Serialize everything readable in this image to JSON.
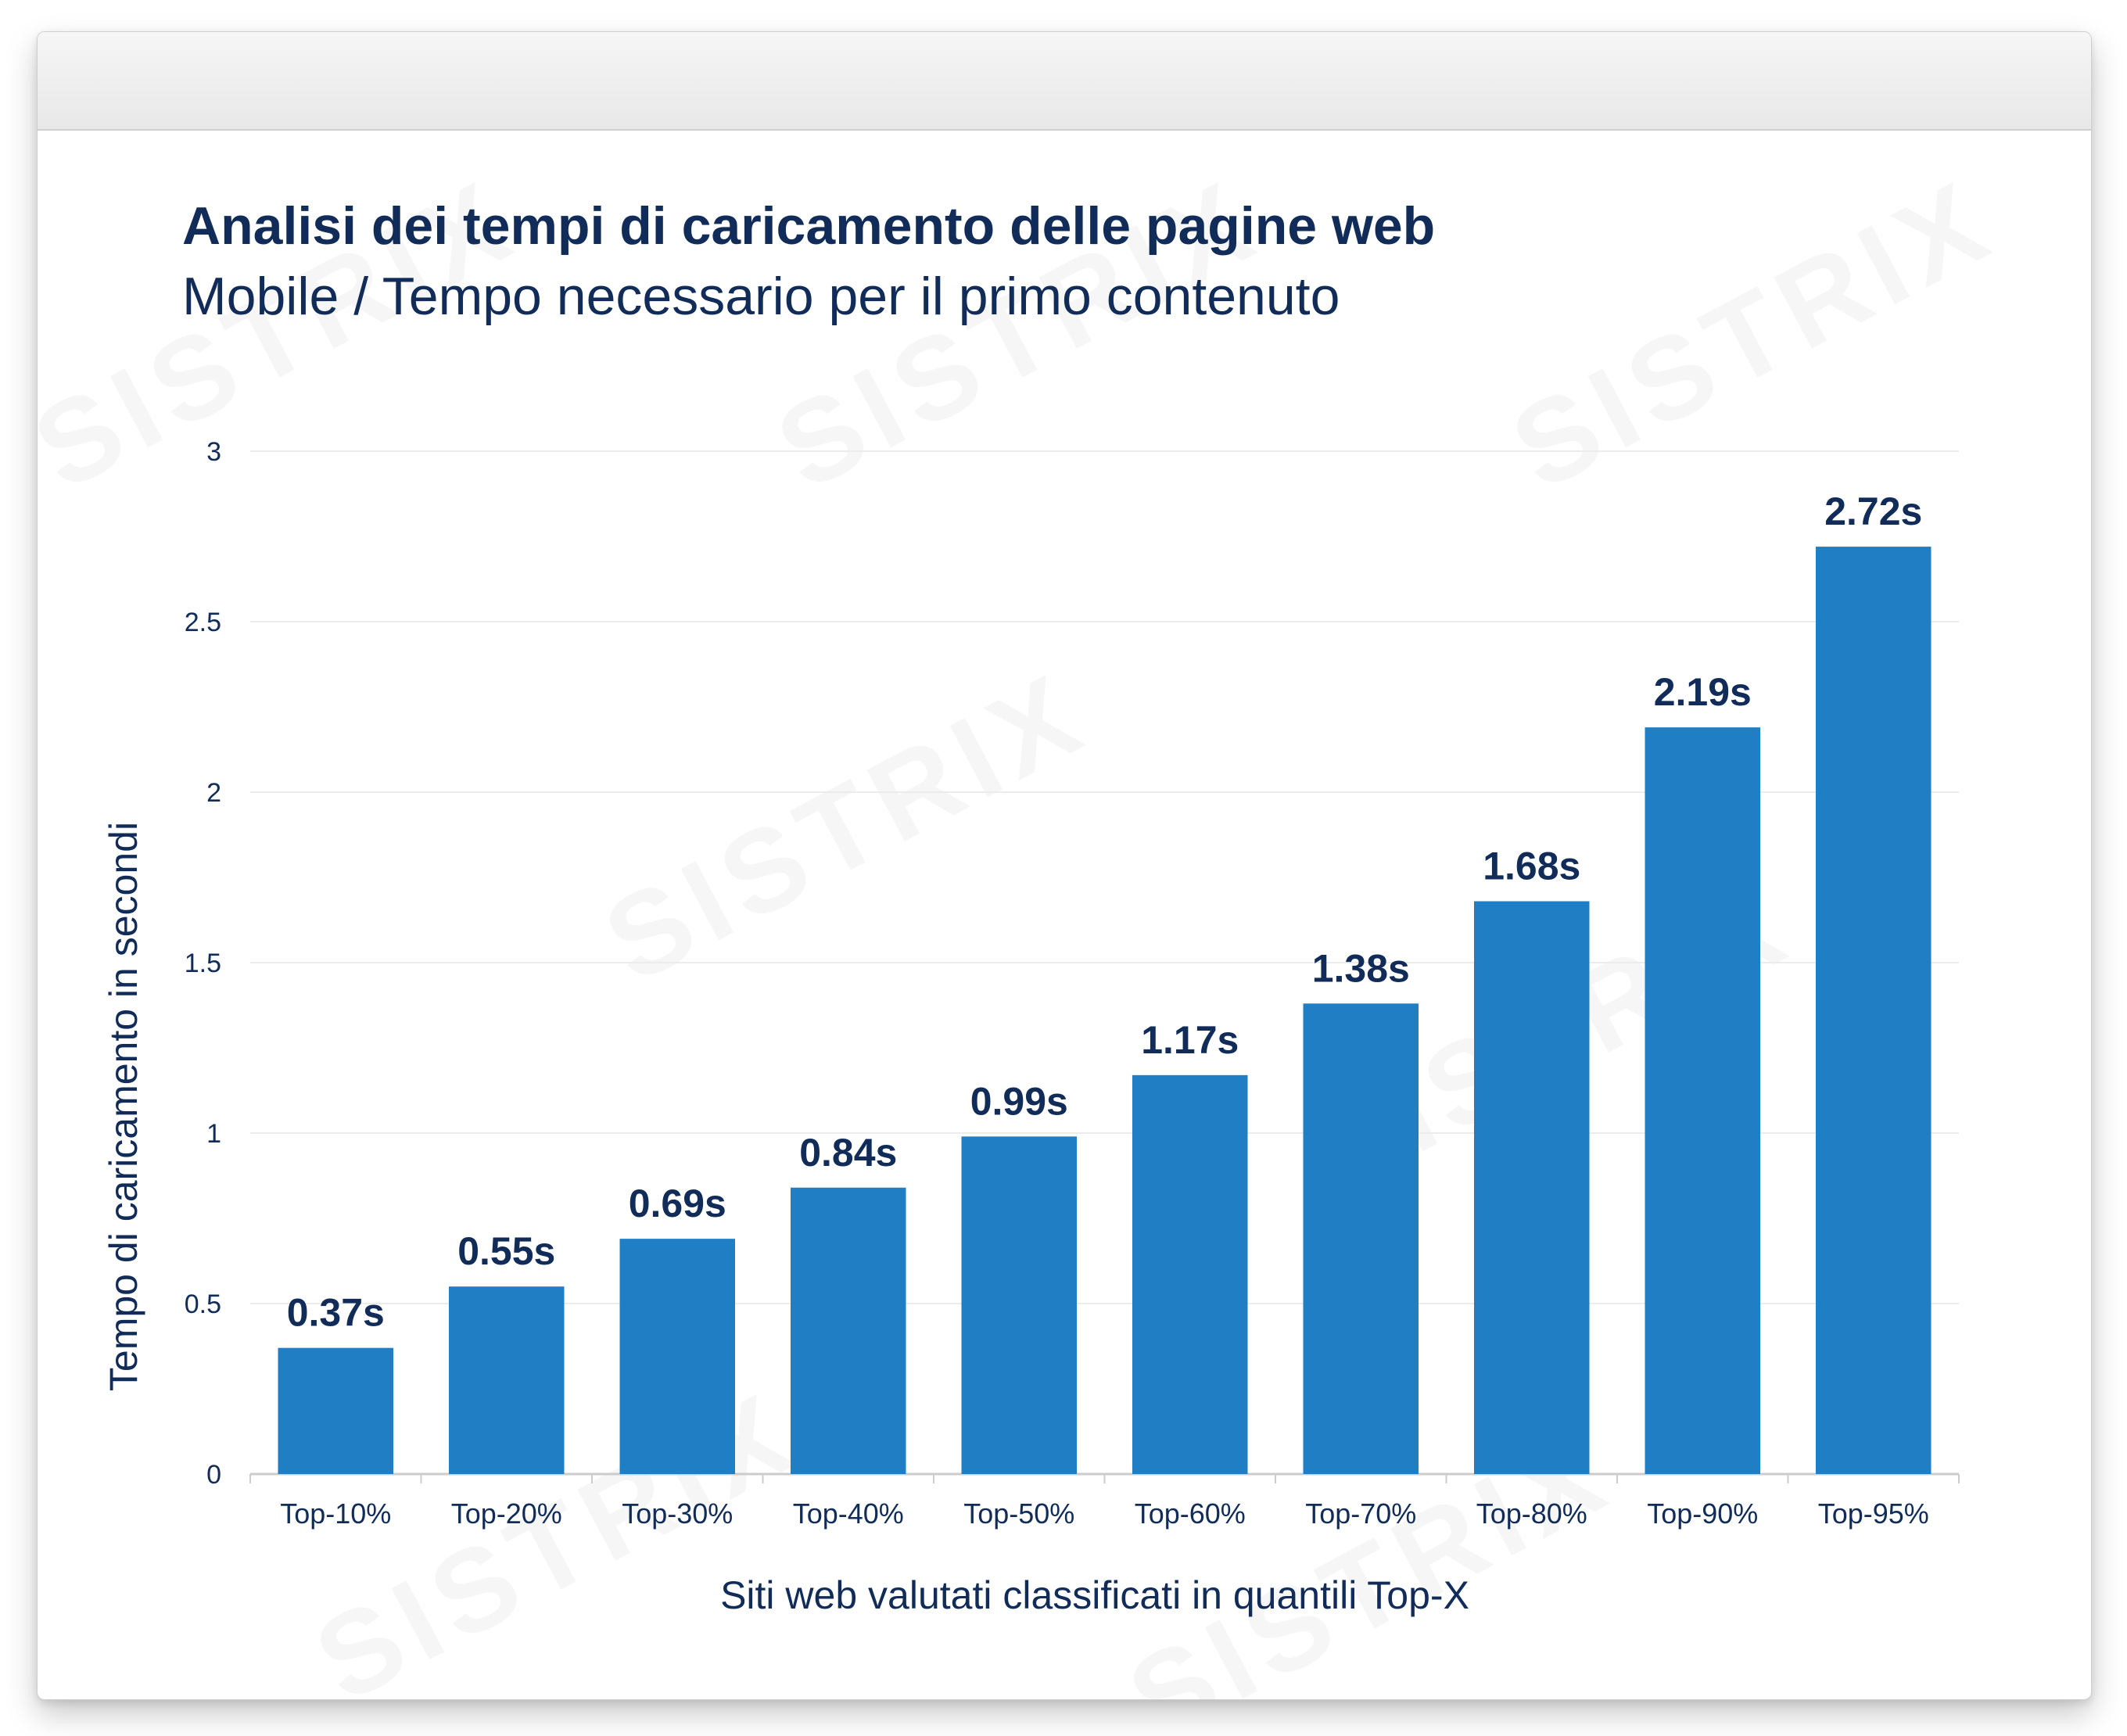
{
  "chart_data": {
    "type": "bar",
    "title": "Analisi dei tempi di caricamento delle pagine web",
    "subtitle": "Mobile / Tempo necessario per il primo contenuto",
    "xlabel": "Siti web valutati classificati in quantili Top-X",
    "ylabel": "Tempo di caricamento in secondi",
    "categories": [
      "Top-10%",
      "Top-20%",
      "Top-30%",
      "Top-40%",
      "Top-50%",
      "Top-60%",
      "Top-70%",
      "Top-80%",
      "Top-90%",
      "Top-95%"
    ],
    "values": [
      0.37,
      0.55,
      0.69,
      0.84,
      0.99,
      1.17,
      1.38,
      1.68,
      2.19,
      2.72
    ],
    "data_labels": [
      "0.37s",
      "0.55s",
      "0.69s",
      "0.84s",
      "0.99s",
      "1.17s",
      "1.38s",
      "1.68s",
      "2.19s",
      "2.72s"
    ],
    "ylim": [
      0,
      3
    ],
    "yticks": [
      "0",
      "0.5",
      "1",
      "1.5",
      "2",
      "2.5",
      "3"
    ],
    "grid": true,
    "legend": "none",
    "colors": {
      "bar": "#1f7ec4",
      "text": "#112c59",
      "grid": "#ececec",
      "axis": "#cccccc"
    }
  },
  "watermark": "SISTRIX"
}
